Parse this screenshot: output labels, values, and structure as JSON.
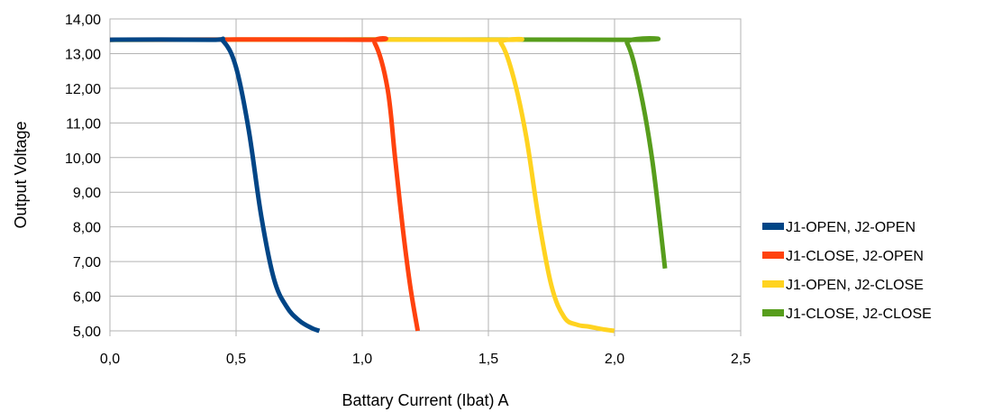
{
  "chart_data": {
    "type": "line",
    "title": "",
    "xlabel": "Battary Current (Ibat) A",
    "ylabel": "Output Voltage",
    "xlim": [
      0,
      2.5
    ],
    "ylim": [
      5,
      14
    ],
    "x_ticks": [
      "0,0",
      "0,5",
      "1,0",
      "1,5",
      "2,0",
      "2,5"
    ],
    "y_ticks": [
      "5,00",
      "6,00",
      "7,00",
      "8,00",
      "9,00",
      "10,00",
      "11,00",
      "12,00",
      "13,00",
      "14,00"
    ],
    "grid": true,
    "legend_position": "right",
    "series": [
      {
        "name": "J1-OPEN, J2-OPEN",
        "color": "#004586",
        "points": [
          [
            0,
            13.4
          ],
          [
            0.4,
            13.4
          ],
          [
            0.45,
            13.35
          ],
          [
            0.5,
            12.6
          ],
          [
            0.55,
            10.8
          ],
          [
            0.6,
            8.3
          ],
          [
            0.65,
            6.5
          ],
          [
            0.7,
            5.7
          ],
          [
            0.75,
            5.3
          ],
          [
            0.8,
            5.08
          ],
          [
            0.83,
            5.0
          ]
        ]
      },
      {
        "name": "J1-CLOSE, J2-OPEN",
        "color": "#ff420e",
        "points": [
          [
            0,
            13.4
          ],
          [
            1.0,
            13.4
          ],
          [
            1.05,
            13.3
          ],
          [
            1.1,
            12.0
          ],
          [
            1.13,
            10.0
          ],
          [
            1.16,
            8.0
          ],
          [
            1.19,
            6.3
          ],
          [
            1.22,
            5.0
          ]
        ]
      },
      {
        "name": "J1-OPEN, J2-CLOSE",
        "color": "#ffd320",
        "points": [
          [
            0,
            13.4
          ],
          [
            1.5,
            13.4
          ],
          [
            1.55,
            13.3
          ],
          [
            1.6,
            12.3
          ],
          [
            1.65,
            10.6
          ],
          [
            1.7,
            8.2
          ],
          [
            1.75,
            6.3
          ],
          [
            1.8,
            5.4
          ],
          [
            1.85,
            5.18
          ],
          [
            1.9,
            5.12
          ],
          [
            1.95,
            5.05
          ],
          [
            2.0,
            5.0
          ]
        ]
      },
      {
        "name": "J1-CLOSE, J2-CLOSE",
        "color": "#579d1c",
        "points": [
          [
            0,
            13.4
          ],
          [
            2.0,
            13.4
          ],
          [
            2.05,
            13.3
          ],
          [
            2.1,
            12.0
          ],
          [
            2.15,
            9.9
          ],
          [
            2.2,
            6.8
          ]
        ]
      }
    ]
  }
}
